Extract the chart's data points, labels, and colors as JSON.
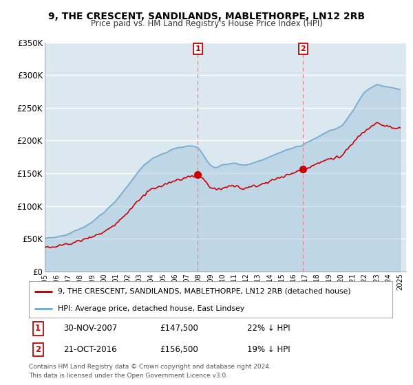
{
  "title": "9, THE CRESCENT, SANDILANDS, MABLETHORPE, LN12 2RB",
  "subtitle": "Price paid vs. HM Land Registry's House Price Index (HPI)",
  "ylim": [
    0,
    350000
  ],
  "xlim_start": 1995.0,
  "xlim_end": 2025.5,
  "hpi_color": "#7aadcf",
  "price_color": "#cc0000",
  "vline_color": "#ee8888",
  "transaction1": {
    "year": 2007.92,
    "price": 147500,
    "label": "1",
    "date": "30-NOV-2007",
    "pct": "22% ↓ HPI"
  },
  "transaction2": {
    "year": 2016.81,
    "price": 156500,
    "label": "2",
    "date": "21-OCT-2016",
    "pct": "19% ↓ HPI"
  },
  "legend_line1": "9, THE CRESCENT, SANDILANDS, MABLETHORPE, LN12 2RB (detached house)",
  "legend_line2": "HPI: Average price, detached house, East Lindsey",
  "footer1": "Contains HM Land Registry data © Crown copyright and database right 2024.",
  "footer2": "This data is licensed under the Open Government Licence v3.0.",
  "plot_bg_color": "#dce8f0"
}
